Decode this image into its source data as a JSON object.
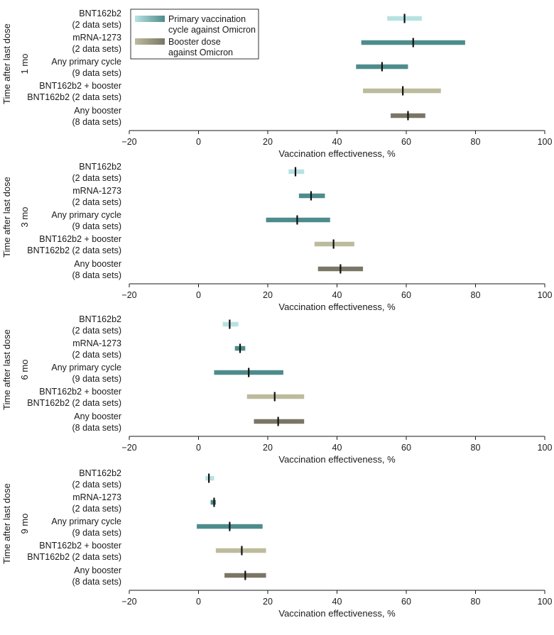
{
  "chart_data": {
    "type": "forest",
    "y_axis_title": "Time after last dose",
    "xlabel": "Vaccination effectiveness, %",
    "xlim": [
      -20,
      100
    ],
    "xticks": [
      -20,
      0,
      20,
      40,
      60,
      80,
      100
    ],
    "legend": {
      "position": "top-left",
      "items": [
        {
          "label_line1": "Primary vaccination",
          "label_line2": "cycle against Omicron",
          "colors": [
            "#b8e2e2",
            "#4e8c8c"
          ]
        },
        {
          "label_line1": "Booster dose",
          "label_line2": "against Omicron",
          "colors": [
            "#bdbb9d",
            "#7a7666"
          ]
        }
      ]
    },
    "rows": [
      {
        "line1": "BNT162b2",
        "line2": "(2 data sets)",
        "color": "#b8e2e2"
      },
      {
        "line1": "mRNA-1273",
        "line2": "(2 data sets)",
        "color": "#4e8c8c"
      },
      {
        "line1": "Any primary cycle",
        "line2": "(9 data sets)",
        "color": "#4e8c8c"
      },
      {
        "line1": "BNT162b2 + booster",
        "line2": "BNT162b2 (2 data sets)",
        "color": "#bdbb9d"
      },
      {
        "line1": "Any booster",
        "line2": "(8 data sets)",
        "color": "#7a7666"
      }
    ],
    "panels": [
      {
        "label": "1 mo",
        "estimates": [
          {
            "point": 59.5,
            "low": 54.5,
            "high": 64.5
          },
          {
            "point": 62.0,
            "low": 47.0,
            "high": 77.0
          },
          {
            "point": 53.0,
            "low": 45.5,
            "high": 60.5
          },
          {
            "point": 59.0,
            "low": 47.5,
            "high": 70.0
          },
          {
            "point": 60.5,
            "low": 55.5,
            "high": 65.5
          }
        ]
      },
      {
        "label": "3 mo",
        "estimates": [
          {
            "point": 28.0,
            "low": 26.0,
            "high": 30.5
          },
          {
            "point": 32.5,
            "low": 29.0,
            "high": 36.5
          },
          {
            "point": 28.5,
            "low": 19.5,
            "high": 38.0
          },
          {
            "point": 39.0,
            "low": 33.5,
            "high": 45.0
          },
          {
            "point": 41.0,
            "low": 34.5,
            "high": 47.5
          }
        ]
      },
      {
        "label": "6 mo",
        "estimates": [
          {
            "point": 9.0,
            "low": 7.0,
            "high": 11.5
          },
          {
            "point": 12.0,
            "low": 10.5,
            "high": 13.5
          },
          {
            "point": 14.5,
            "low": 4.5,
            "high": 24.5
          },
          {
            "point": 22.0,
            "low": 14.0,
            "high": 30.5
          },
          {
            "point": 23.0,
            "low": 16.0,
            "high": 30.5
          }
        ]
      },
      {
        "label": "9 mo",
        "estimates": [
          {
            "point": 3.0,
            "low": 2.0,
            "high": 4.5
          },
          {
            "point": 4.5,
            "low": 3.5,
            "high": 5.0
          },
          {
            "point": 9.0,
            "low": -0.5,
            "high": 18.5
          },
          {
            "point": 12.5,
            "low": 5.0,
            "high": 19.5
          },
          {
            "point": 13.5,
            "low": 7.5,
            "high": 19.5
          }
        ]
      }
    ]
  }
}
